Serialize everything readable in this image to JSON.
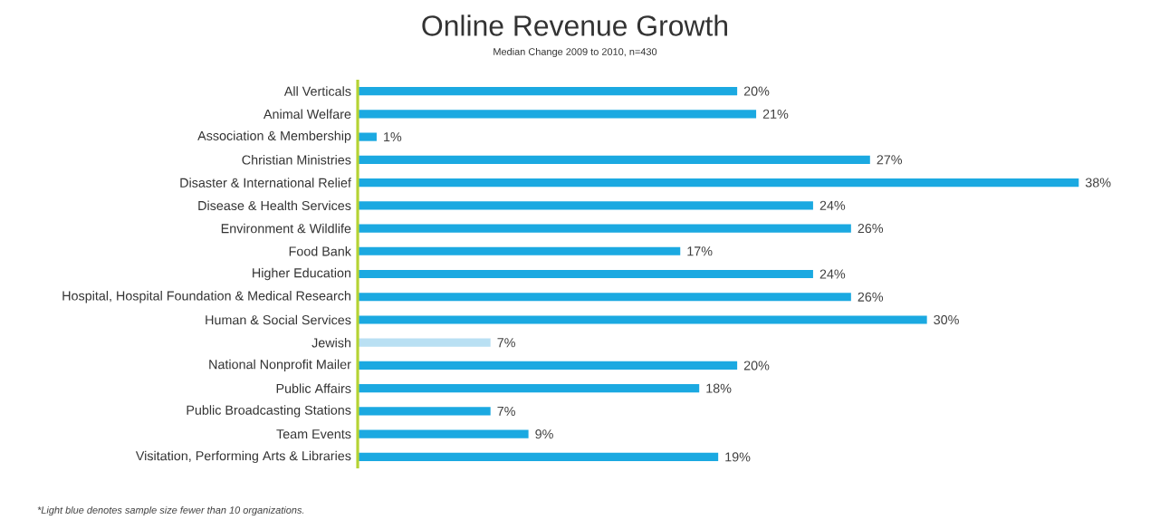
{
  "chart_data": {
    "type": "bar",
    "orientation": "horizontal",
    "title": "Online Revenue Growth",
    "subtitle": "Median Change 2009 to 2010, n=430",
    "categories": [
      "All Verticals",
      "Animal Welfare",
      "Association & Membership",
      "Christian Ministries",
      "Disaster & International Relief",
      "Disease & Health Services",
      "Environment & Wildlife",
      "Food Bank",
      "Higher Education",
      "Hospital, Hospital Foundation & Medical Research",
      "Human & Social Services",
      "Jewish",
      "National Nonprofit Mailer",
      "Public Affairs",
      "Public Broadcasting Stations",
      "Team Events",
      "Visitation, Performing Arts & Libraries"
    ],
    "values": [
      20,
      21,
      1,
      27,
      38,
      24,
      26,
      17,
      24,
      26,
      30,
      7,
      20,
      18,
      7,
      9,
      19
    ],
    "value_labels": [
      "20%",
      "21%",
      "1%",
      "27%",
      "38%",
      "24%",
      "26%",
      "17%",
      "24%",
      "26%",
      "30%",
      "7%",
      "20%",
      "18%",
      "7%",
      "9%",
      "19%"
    ],
    "colors": [
      "#1ba9e1",
      "#1ba9e1",
      "#1ba9e1",
      "#1ba9e1",
      "#1ba9e1",
      "#1ba9e1",
      "#1ba9e1",
      "#1ba9e1",
      "#1ba9e1",
      "#1ba9e1",
      "#1ba9e1",
      "#b9e0f3",
      "#1ba9e1",
      "#1ba9e1",
      "#1ba9e1",
      "#1ba9e1",
      "#1ba9e1"
    ],
    "annotations": [
      "*Light blue denotes sample size fewer than 10 organizations."
    ]
  }
}
